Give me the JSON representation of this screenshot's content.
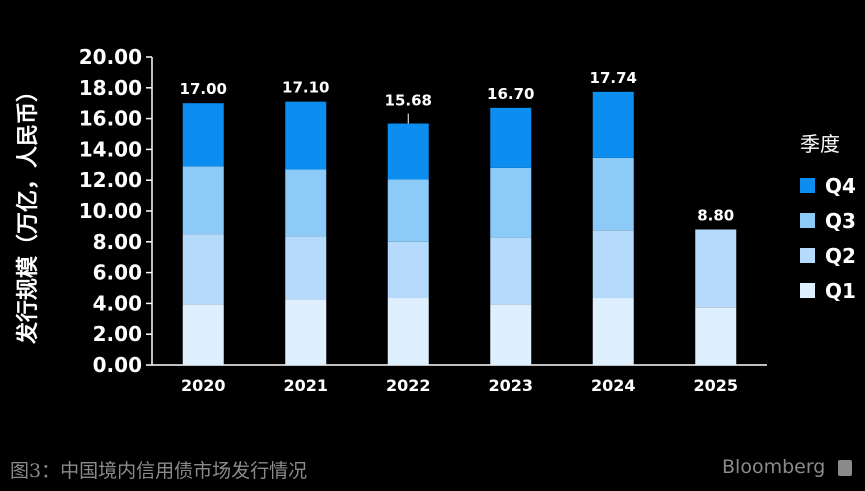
{
  "chart_data": {
    "type": "bar",
    "stacked": true,
    "categories": [
      "2020",
      "2021",
      "2022",
      "2023",
      "2024",
      "2025"
    ],
    "series": [
      {
        "name": "Q1",
        "color": "#deeffd",
        "values": [
          3.95,
          4.25,
          4.35,
          3.95,
          4.35,
          3.75
        ]
      },
      {
        "name": "Q2",
        "color": "#b5dafb",
        "values": [
          4.55,
          4.1,
          3.65,
          4.3,
          4.4,
          5.05
        ]
      },
      {
        "name": "Q3",
        "color": "#8ccbf8",
        "values": [
          4.4,
          4.35,
          4.05,
          4.55,
          4.7,
          0
        ]
      },
      {
        "name": "Q4",
        "color": "#0b8ef0",
        "values": [
          4.1,
          4.4,
          3.63,
          3.9,
          4.29,
          0
        ]
      }
    ],
    "totals": [
      "17.00",
      "17.10",
      "15.68",
      "16.70",
      "17.74",
      "8.80"
    ],
    "y_ticks": [
      "0.00",
      "2.00",
      "4.00",
      "6.00",
      "8.00",
      "10.00",
      "12.00",
      "14.00",
      "16.00",
      "18.00",
      "20.00"
    ],
    "ylim": [
      0,
      20
    ],
    "ylabel": "发行规模（万亿，人民币）",
    "legend_title": "季度",
    "legend_order": [
      "Q4",
      "Q3",
      "Q2",
      "Q1"
    ],
    "legend_position": "right",
    "grid": false
  },
  "caption": "图3：中国境内信用债市场发行情况",
  "brand": "Bloomberg"
}
